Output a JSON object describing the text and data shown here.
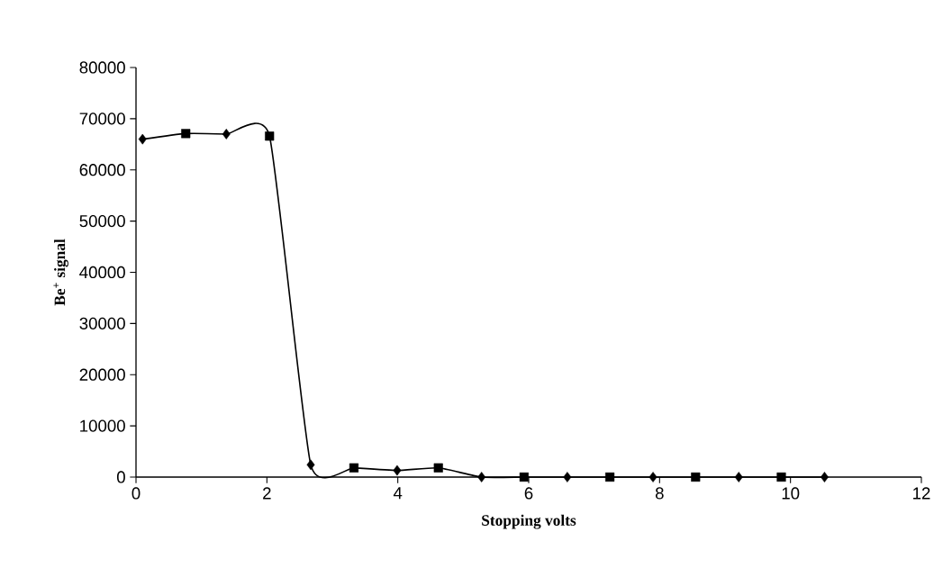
{
  "chart_data": {
    "type": "line",
    "xlabel": "Stopping volts",
    "ylabel": "Be$^{+}$ signal",
    "xlim": [
      0,
      12
    ],
    "xticks": [
      0,
      2,
      4,
      6,
      8,
      10,
      12
    ],
    "ylim": [
      0,
      80000
    ],
    "yticks": [
      0,
      10000,
      20000,
      30000,
      40000,
      50000,
      60000,
      70000,
      80000
    ],
    "grid": false,
    "legend": false,
    "series": [
      {
        "type": "scatter",
        "marker": "diamond",
        "color": "#000000",
        "x": [
          0.1,
          1.38,
          2.67,
          3.99,
          5.28,
          6.59,
          7.9,
          9.21,
          10.52
        ],
        "values": [
          66000,
          67000,
          2400,
          1300,
          0,
          0,
          0,
          0,
          0
        ]
      },
      {
        "type": "scatter",
        "marker": "square",
        "color": "#000000",
        "x": [
          0.76,
          2.04,
          3.33,
          4.62,
          5.93,
          7.24,
          8.55,
          9.86
        ],
        "values": [
          67100,
          66600,
          1800,
          1800,
          0,
          0,
          0,
          0
        ]
      },
      {
        "marker": "none",
        "color": "#000000",
        "x": [
          0.1,
          0.76,
          1.38,
          2.04,
          2.67,
          3.33,
          3.99,
          4.62,
          5.28,
          5.93,
          6.59,
          7.24,
          7.9,
          8.55,
          9.21,
          9.86,
          10.52
        ],
        "values": [
          66000,
          67100,
          67000,
          66600,
          2400,
          1800,
          1300,
          1800,
          0,
          0,
          0,
          0,
          0,
          0,
          0,
          0,
          0
        ]
      }
    ]
  }
}
